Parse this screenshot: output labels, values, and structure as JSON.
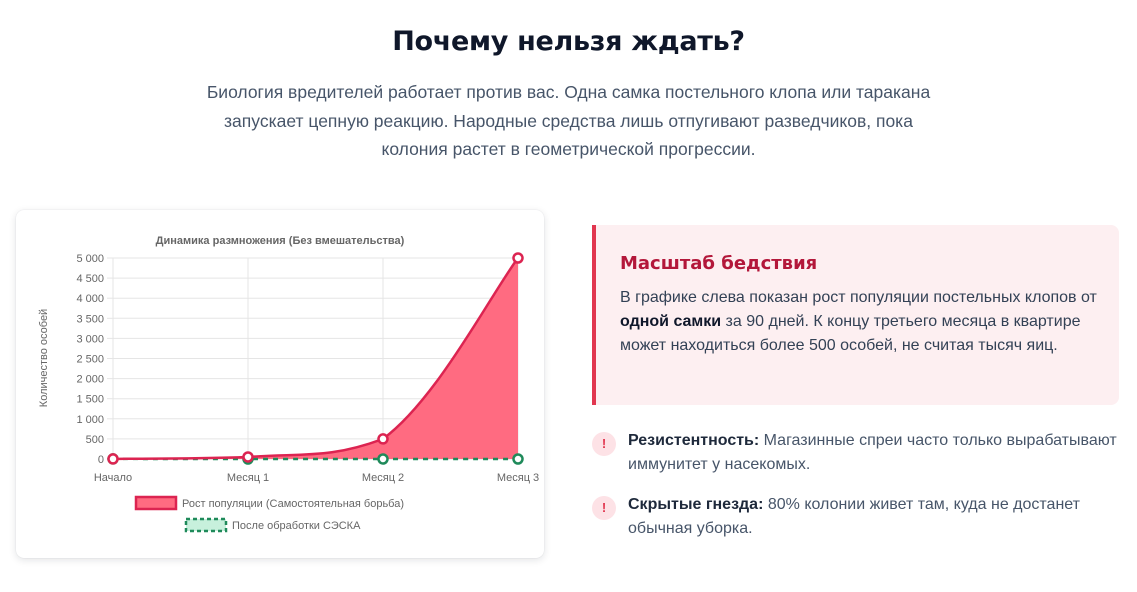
{
  "heading": "Почему нельзя ждать?",
  "intro": "Биология вредителей работает против вас. Одна самка постельного клопа или таракана запускает цепную реакцию. Народные средства лишь отпугивают разведчиков, пока колония растет в геометрической прогрессии.",
  "chart_data": {
    "type": "area",
    "title": "Динамика размножения (Без вмешательства)",
    "ylabel": "Количество особей",
    "xlabel": "",
    "categories": [
      "Начало",
      "Месяц 1",
      "Месяц 2",
      "Месяц 3"
    ],
    "ylim": [
      0,
      5000
    ],
    "yticks": [
      "0",
      "500",
      "1 000",
      "1 500",
      "2 000",
      "2 500",
      "3 000",
      "3 500",
      "4 000",
      "4 500",
      "5 000"
    ],
    "grid": true,
    "legend_position": "bottom",
    "series": [
      {
        "name": "Рост популяции (Самостоятельная борьба)",
        "values": [
          2,
          50,
          500,
          5000
        ],
        "color": "#dc2451",
        "fill": "#ff6b81"
      },
      {
        "name": "После обработки СЭСКА",
        "values": [
          2,
          0,
          0,
          0
        ],
        "color": "#1f8a5a",
        "dashed": true
      }
    ]
  },
  "callout": {
    "title": "Масштаб бедствия",
    "text_before": "В графике слева показан рост популяции постельных клопов от ",
    "text_bold": "одной самки",
    "text_after": " за 90 дней. К концу третьего месяца в квартире может находиться более 500 особей, не считая тысяч яиц."
  },
  "points": [
    {
      "icon": "!",
      "title": "Резистентность:",
      "text": " Магазинные спреи часто только вырабатывают иммунитет у насекомых."
    },
    {
      "icon": "!",
      "title": "Скрытые гнезда:",
      "text": " 80% колонии живет там, куда не достанет обычная уборка."
    }
  ],
  "colors": {
    "accent": "#e1364f",
    "callout_bg": "#fdeff1",
    "heading": "#0f172a"
  }
}
